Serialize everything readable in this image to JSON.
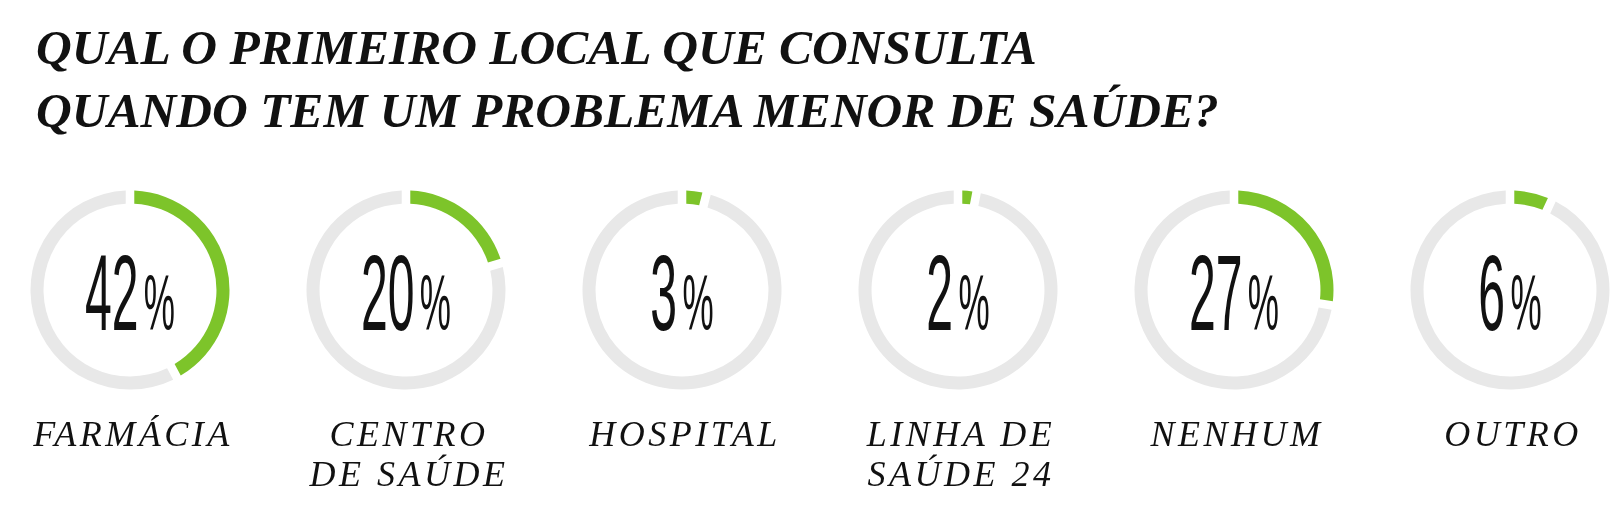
{
  "chart_data": [
    {
      "type": "donut",
      "title": "QUAL O PRIMEIRO LOCAL QUE CONSULTA\nQUANDO TEM UM PROBLEMA MENOR DE SAÚDE?",
      "xlabel": "FARMÁCIA",
      "categories": [
        null,
        null
      ],
      "values": [
        42,
        58
      ],
      "colors": [
        "#7dc42a",
        "#e8e8e8"
      ],
      "annotations": [
        "42%"
      ]
    },
    {
      "type": "donut",
      "xlabel": "CENTRO\nDE SAÚDE",
      "categories": [
        null,
        null
      ],
      "values": [
        20,
        80
      ],
      "colors": [
        "#7dc42a",
        "#e8e8e8"
      ],
      "annotations": [
        "20%"
      ]
    },
    {
      "type": "donut",
      "xlabel": "HOSPITAL",
      "categories": [
        null,
        null
      ],
      "values": [
        3,
        97
      ],
      "colors": [
        "#7dc42a",
        "#e8e8e8"
      ],
      "annotations": [
        "3%"
      ]
    },
    {
      "type": "donut",
      "xlabel": "LINHA DE\nSAÚDE 24",
      "categories": [
        null,
        null
      ],
      "values": [
        2,
        98
      ],
      "colors": [
        "#7dc42a",
        "#e8e8e8"
      ],
      "annotations": [
        "2%"
      ]
    },
    {
      "type": "donut",
      "xlabel": "NENHUM",
      "categories": [
        null,
        null
      ],
      "values": [
        27,
        73
      ],
      "colors": [
        "#7dc42a",
        "#e8e8e8"
      ],
      "annotations": [
        "27%"
      ]
    },
    {
      "type": "donut",
      "xlabel": "OUTRO",
      "categories": [
        null,
        null
      ],
      "values": [
        6,
        94
      ],
      "colors": [
        "#7dc42a",
        "#e8e8e8"
      ],
      "annotations": [
        "6%"
      ]
    }
  ]
}
